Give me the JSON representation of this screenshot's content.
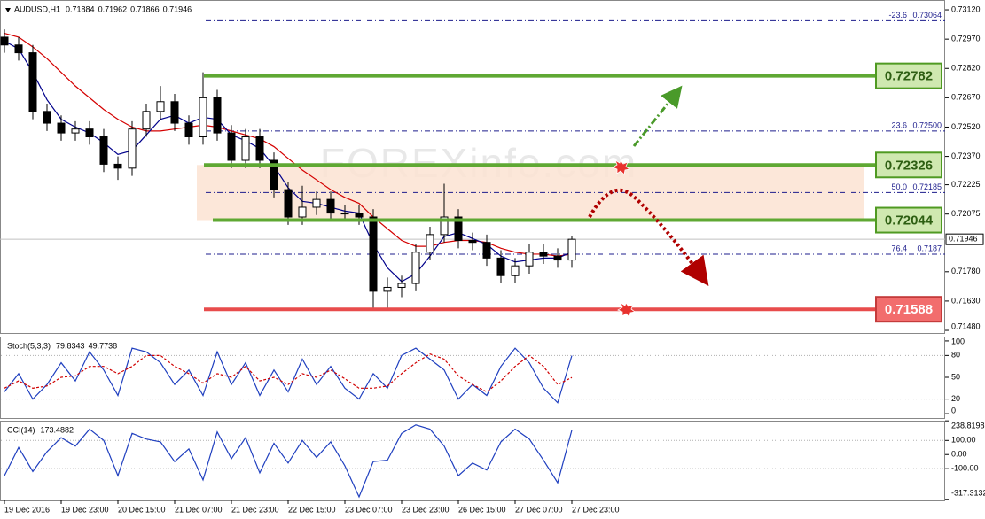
{
  "chart_data": [
    {
      "type": "candlestick",
      "title": "AUDUSD,H1",
      "header_values": [
        0.71884,
        0.71962,
        0.71866,
        0.71946
      ],
      "categories": [
        "19 Dec 2016",
        null,
        null,
        null,
        "19 Dec 23:00",
        null,
        null,
        null,
        "20 Dec 15:00",
        null,
        null,
        null,
        "21 Dec 07:00",
        null,
        null,
        null,
        "21 Dec 23:00",
        null,
        null,
        null,
        "22 Dec 15:00",
        null,
        null,
        null,
        "23 Dec 07:00",
        null,
        null,
        null,
        "23 Dec 23:00",
        null,
        null,
        null,
        "26 Dec 15:00",
        null,
        null,
        null,
        "27 Dec 07:00",
        null,
        null,
        null,
        "27 Dec 23:00"
      ],
      "open": [
        0.7298,
        0.7294,
        0.729,
        0.726,
        0.7254,
        0.7249,
        0.7251,
        0.7247,
        0.7233,
        0.7231,
        0.7251,
        0.726,
        0.7265,
        0.7254,
        0.7247,
        0.7267,
        0.7249,
        0.7235,
        0.7247,
        0.7235,
        0.722,
        0.7206,
        0.7211,
        0.7215,
        0.7208,
        0.7208,
        0.7206,
        0.7168,
        0.717,
        0.7172,
        0.7188,
        0.7197,
        0.7206,
        0.7194,
        0.7193,
        0.7185,
        0.7176,
        0.7181,
        0.7188,
        0.7186,
        0.7184
      ],
      "high": [
        0.7302,
        0.7298,
        0.7294,
        0.7264,
        0.7258,
        0.7255,
        0.7255,
        0.7251,
        0.7237,
        0.7255,
        0.7264,
        0.7273,
        0.7269,
        0.7258,
        0.728,
        0.7271,
        0.7253,
        0.7251,
        0.7251,
        0.7239,
        0.7224,
        0.7222,
        0.7219,
        0.7219,
        0.7212,
        0.7212,
        0.721,
        0.7175,
        0.7176,
        0.7192,
        0.7201,
        0.7223,
        0.721,
        0.7198,
        0.7197,
        0.7189,
        0.7185,
        0.7192,
        0.7192,
        0.719,
        0.71962
      ],
      "low": [
        0.729,
        0.7286,
        0.7256,
        0.725,
        0.7245,
        0.7245,
        0.7243,
        0.7229,
        0.7225,
        0.7227,
        0.7247,
        0.7256,
        0.725,
        0.7243,
        0.7243,
        0.7245,
        0.7231,
        0.7231,
        0.7231,
        0.7216,
        0.7202,
        0.7202,
        0.7207,
        0.7204,
        0.7204,
        0.7202,
        0.7159,
        0.7159,
        0.7165,
        0.7168,
        0.7184,
        0.7193,
        0.719,
        0.7189,
        0.7181,
        0.7172,
        0.7172,
        0.7177,
        0.7182,
        0.718,
        0.718
      ],
      "close": [
        0.7294,
        0.729,
        0.726,
        0.7254,
        0.7249,
        0.7251,
        0.7247,
        0.7233,
        0.7231,
        0.7251,
        0.726,
        0.7265,
        0.7254,
        0.7247,
        0.7267,
        0.7249,
        0.7235,
        0.7247,
        0.7235,
        0.722,
        0.7206,
        0.7211,
        0.7215,
        0.7208,
        0.7208,
        0.7206,
        0.7168,
        0.717,
        0.7172,
        0.7188,
        0.7197,
        0.7206,
        0.7194,
        0.7193,
        0.7185,
        0.7176,
        0.7181,
        0.7188,
        0.7186,
        0.7184,
        0.71946
      ],
      "candle_up_color": "#ffffff",
      "candle_down_color": "#000000",
      "moving_averages": [
        {
          "color": "#d40000",
          "values": [
            0.73,
            0.7298,
            0.7293,
            0.7287,
            0.728,
            0.7273,
            0.7267,
            0.7261,
            0.7256,
            0.7252,
            0.725,
            0.725,
            0.7251,
            0.7252,
            0.7253,
            0.7252,
            0.725,
            0.7248,
            0.7246,
            0.7242,
            0.7236,
            0.723,
            0.7225,
            0.722,
            0.7216,
            0.7213,
            0.7206,
            0.72,
            0.7194,
            0.7191,
            0.7191,
            0.7193,
            0.7194,
            0.7194,
            0.7193,
            0.719,
            0.7188,
            0.7187,
            0.7187,
            0.7186,
            0.7187
          ]
        },
        {
          "color": "#00008b",
          "values": [
            0.7296,
            0.7292,
            0.728,
            0.7266,
            0.7256,
            0.7252,
            0.7249,
            0.7244,
            0.7238,
            0.724,
            0.7248,
            0.7256,
            0.7258,
            0.7254,
            0.7257,
            0.7256,
            0.7248,
            0.7245,
            0.7241,
            0.7232,
            0.7221,
            0.7214,
            0.7213,
            0.7211,
            0.7209,
            0.7208,
            0.7192,
            0.718,
            0.7173,
            0.7177,
            0.7186,
            0.7196,
            0.7198,
            0.7195,
            0.7192,
            0.7186,
            0.7183,
            0.7184,
            0.7185,
            0.7185,
            0.7188
          ]
        }
      ],
      "ylim": [
        0.71462,
        0.7317
      ],
      "yticks": [
        {
          "value": 0.7312,
          "label": "0.73120"
        },
        {
          "value": 0.7297,
          "label": "0.72970"
        },
        {
          "value": 0.7282,
          "label": "0.72820"
        },
        {
          "value": 0.7267,
          "label": "0.72670"
        },
        {
          "value": 0.7252,
          "label": "0.72520"
        },
        {
          "value": 0.7237,
          "label": "0.72370"
        },
        0.72225,
        0.72075,
        {
          "value": 0.7178,
          "label": "0.71780"
        },
        {
          "value": 0.7163,
          "label": "0.71630"
        },
        {
          "value": 0.7148,
          "label": "0.71480"
        }
      ],
      "last_price": 0.71946,
      "levels": [
        {
          "value": 0.72782,
          "color": "#5fa833"
        },
        {
          "value": 0.72326,
          "color": "#5fa833"
        },
        {
          "value": 0.72044,
          "color": "#5fa833"
        },
        {
          "value": 0.71588,
          "color": "#e84c4c"
        }
      ],
      "fib_color": "#1c1c8c",
      "fib_levels": [
        {
          "level": -23.6,
          "price": 0.73064
        },
        {
          "level": 23.6,
          "price": {
            "value": 0.725,
            "label": "0.72500"
          }
        },
        {
          "level": {
            "value": 50,
            "label": "50.0"
          },
          "price": 0.72185
        },
        {
          "level": 76.4,
          "price": 0.7187
        }
      ],
      "watermark": "FOREXinfo.com"
    },
    {
      "type": "line",
      "title": "Stoch(5,3,3)",
      "header_values": [
        79.8343,
        49.7738
      ],
      "ylim": [
        -6,
        106
      ],
      "yticks": [
        100,
        80,
        50,
        20,
        0
      ],
      "levels": [
        80,
        20
      ],
      "series": [
        {
          "color": "#1f3fbf",
          "line_style": "solid",
          "values": [
            30,
            55,
            20,
            40,
            70,
            45,
            85,
            60,
            25,
            90,
            85,
            70,
            40,
            60,
            25,
            85,
            40,
            70,
            25,
            60,
            30,
            75,
            40,
            65,
            35,
            20,
            55,
            35,
            80,
            90,
            75,
            60,
            20,
            40,
            25,
            65,
            90,
            70,
            35,
            15,
            79.8343
          ]
        },
        {
          "color": "#d00000",
          "line_style": "dashed",
          "values": [
            35,
            45,
            35,
            38,
            50,
            52,
            65,
            65,
            55,
            65,
            80,
            80,
            65,
            55,
            42,
            55,
            50,
            65,
            45,
            50,
            40,
            55,
            50,
            60,
            48,
            35,
            35,
            38,
            55,
            70,
            82,
            75,
            52,
            40,
            30,
            45,
            65,
            80,
            65,
            40,
            49.7738
          ]
        }
      ]
    },
    {
      "type": "line",
      "title": "CCI(14)",
      "header_values": [
        173.4882
      ],
      "ylim": [
        -325,
        240
      ],
      "yticks": [
        238.8198,
        {
          "value": 100,
          "label": "100.00"
        },
        {
          "value": 0,
          "label": "0.00"
        },
        {
          "value": -100,
          "label": "-100.00"
        },
        -317.3132
      ],
      "levels": [
        100,
        -100
      ],
      "series": [
        {
          "color": "#1f3fbf",
          "line_style": "solid",
          "values": [
            -150,
            50,
            -120,
            20,
            120,
            60,
            180,
            100,
            -150,
            150,
            110,
            90,
            -50,
            40,
            -180,
            160,
            -30,
            120,
            -130,
            80,
            -60,
            100,
            -20,
            90,
            -80,
            -300,
            -50,
            -40,
            150,
            210,
            180,
            60,
            -150,
            -60,
            -110,
            90,
            180,
            110,
            -40,
            -200,
            173.4882
          ]
        }
      ]
    }
  ]
}
